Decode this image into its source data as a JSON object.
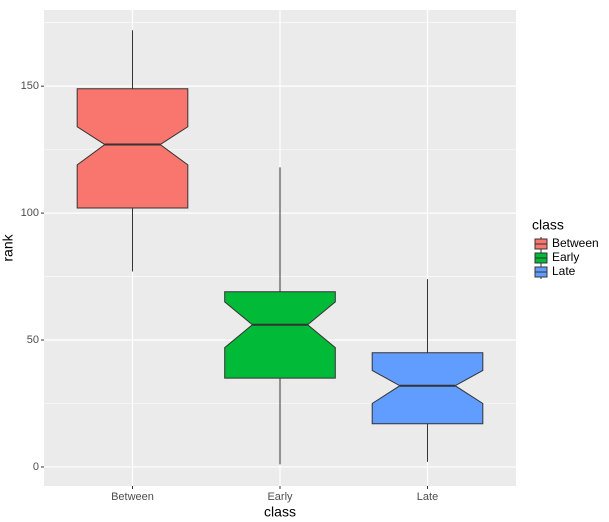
{
  "chart_data": {
    "type": "box",
    "x_label": "class",
    "y_label": "rank",
    "legend_title": "class",
    "categories": [
      "Between",
      "Early",
      "Late"
    ],
    "colors": [
      "#F8766D",
      "#00BA38",
      "#619CFF"
    ],
    "whisker_low": [
      77,
      1,
      2
    ],
    "q1": [
      102,
      35,
      17
    ],
    "notch_low": [
      119,
      47,
      25
    ],
    "median": [
      127,
      56,
      32
    ],
    "notch_high": [
      134,
      65,
      38
    ],
    "q3": [
      149,
      69,
      45
    ],
    "whisker_high": [
      172,
      118,
      74
    ],
    "ylim": [
      -7.5,
      180
    ],
    "yticks": [
      0,
      50,
      100,
      150
    ],
    "y_minor_ticks": [
      25,
      75,
      125,
      175
    ],
    "grid": true
  }
}
